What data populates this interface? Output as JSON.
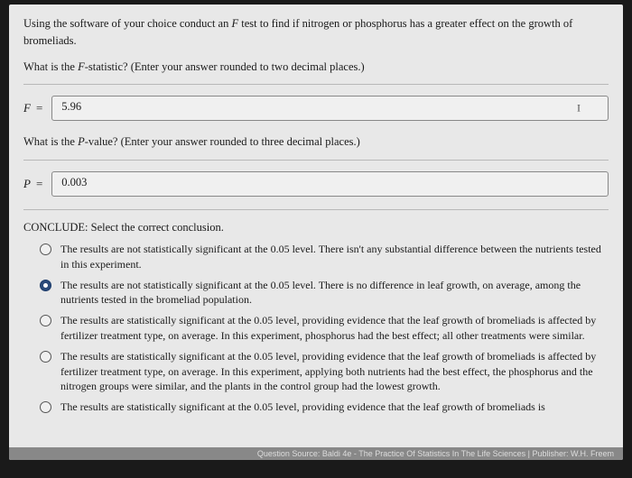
{
  "intro": {
    "line1_pre": "Using the software of your choice conduct an ",
    "line1_ital": "F",
    "line1_post": " test to find if nitrogen or phosphorus has a greater effect on the growth of bromeliads."
  },
  "q1": {
    "pre": "What is the ",
    "ital": "F",
    "post": "-statistic? (Enter your answer rounded to two decimal places.)",
    "label": "F",
    "value": "5.96"
  },
  "q2": {
    "pre": "What is the ",
    "ital": "P",
    "post": "-value? (Enter your answer rounded to three decimal places.)",
    "label": "P",
    "value": "0.003"
  },
  "conclude": {
    "heading": "CONCLUDE: Select the correct conclusion.",
    "options": [
      "The results are not statistically significant at the 0.05 level. There isn't any substantial difference between the nutrients tested in this experiment.",
      "The results are not statistically significant at the 0.05 level. There is no difference in leaf growth, on average, among the nutrients tested in the bromeliad population.",
      "The results are statistically significant at the 0.05 level, providing evidence that the leaf growth of bromeliads is affected by fertilizer treatment type, on average. In this experiment, phosphorus had the best effect; all other treatments were similar.",
      "The results are statistically significant at the 0.05 level, providing evidence that the leaf growth of bromeliads is affected by fertilizer treatment type, on average. In this experiment, applying both nutrients had the best effect, the phosphorus and the nitrogen groups were similar, and the plants in the control group had the lowest growth.",
      "The results are statistically significant at the 0.05 level, providing evidence that the leaf growth of bromeliads is"
    ],
    "selected_index": 1
  },
  "footer": {
    "text": "Question Source: Baldi 4e - The Practice Of Statistics In The Life Sciences  |  Publisher: W.H. Freem"
  }
}
